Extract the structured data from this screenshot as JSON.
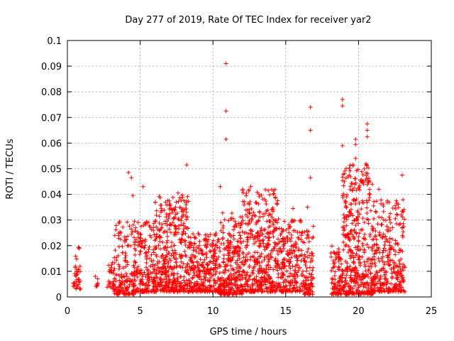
{
  "chart_data": {
    "type": "scatter",
    "title": "Day 277 of 2019, Rate Of TEC Index for receiver yar2",
    "xlabel": "GPS time / hours",
    "ylabel": "ROTI / TECUs",
    "xlim": [
      0,
      25
    ],
    "ylim": [
      0,
      0.1
    ],
    "x_ticks": [
      "0",
      "5",
      "10",
      "15",
      "20",
      "25"
    ],
    "y_ticks": [
      "0",
      "0.01",
      "0.02",
      "0.03",
      "0.04",
      "0.05",
      "0.06",
      "0.07",
      "0.08",
      "0.09",
      "0.1"
    ],
    "grid": true,
    "marker": "+",
    "color": "#ff0000",
    "series": [
      {
        "name": "ROTI",
        "clusters": [
          {
            "x_range": [
              0.4,
              0.9
            ],
            "y_range": [
              0.003,
              0.02
            ],
            "count": 40
          },
          {
            "x_range": [
              1.9,
              2.1
            ],
            "y_range": [
              0.004,
              0.011
            ],
            "count": 8
          },
          {
            "x_range": [
              2.7,
              3.2
            ],
            "y_range": [
              0.003,
              0.014
            ],
            "count": 25
          },
          {
            "x_range": [
              3.2,
              4.6
            ],
            "y_range": [
              0.001,
              0.03
            ],
            "count": 160
          },
          {
            "x_range": [
              4.6,
              6.0
            ],
            "y_range": [
              0.002,
              0.03
            ],
            "count": 180
          },
          {
            "x_range": [
              6.0,
              8.4
            ],
            "y_range": [
              0.002,
              0.04
            ],
            "count": 420
          },
          {
            "x_range": [
              8.4,
              10.5
            ],
            "y_range": [
              0.002,
              0.025
            ],
            "count": 300
          },
          {
            "x_range": [
              10.5,
              12.0
            ],
            "y_range": [
              0.001,
              0.033
            ],
            "count": 260
          },
          {
            "x_range": [
              12.0,
              14.5
            ],
            "y_range": [
              0.002,
              0.042
            ],
            "count": 420
          },
          {
            "x_range": [
              14.5,
              16.2
            ],
            "y_range": [
              0.002,
              0.03
            ],
            "count": 220
          },
          {
            "x_range": [
              16.2,
              16.9
            ],
            "y_range": [
              0.001,
              0.028
            ],
            "count": 90
          },
          {
            "x_range": [
              18.1,
              18.9
            ],
            "y_range": [
              0.001,
              0.02
            ],
            "count": 90
          },
          {
            "x_range": [
              18.9,
              21.0
            ],
            "y_range": [
              0.001,
              0.052
            ],
            "count": 420
          },
          {
            "x_range": [
              21.0,
              23.2
            ],
            "y_range": [
              0.002,
              0.038
            ],
            "count": 300
          }
        ],
        "outliers": [
          {
            "x": 10.9,
            "y": 0.091
          },
          {
            "x": 10.9,
            "y": 0.0725
          },
          {
            "x": 10.9,
            "y": 0.0615
          },
          {
            "x": 10.5,
            "y": 0.043
          },
          {
            "x": 16.7,
            "y": 0.074
          },
          {
            "x": 16.7,
            "y": 0.065
          },
          {
            "x": 16.7,
            "y": 0.0465
          },
          {
            "x": 18.9,
            "y": 0.077
          },
          {
            "x": 18.9,
            "y": 0.0745
          },
          {
            "x": 18.9,
            "y": 0.059
          },
          {
            "x": 19.8,
            "y": 0.0615
          },
          {
            "x": 19.8,
            "y": 0.0595
          },
          {
            "x": 19.8,
            "y": 0.054
          },
          {
            "x": 20.6,
            "y": 0.0675
          },
          {
            "x": 20.6,
            "y": 0.065
          },
          {
            "x": 20.6,
            "y": 0.0625
          },
          {
            "x": 23.0,
            "y": 0.0475
          },
          {
            "x": 4.2,
            "y": 0.0485
          },
          {
            "x": 4.4,
            "y": 0.0465
          },
          {
            "x": 8.2,
            "y": 0.0515
          },
          {
            "x": 5.2,
            "y": 0.043
          },
          {
            "x": 15.5,
            "y": 0.0345
          },
          {
            "x": 16.5,
            "y": 0.035
          },
          {
            "x": 22.6,
            "y": 0.0375
          },
          {
            "x": 21.4,
            "y": 0.042
          },
          {
            "x": 12.6,
            "y": 0.043
          },
          {
            "x": 13.8,
            "y": 0.0415
          },
          {
            "x": 7.6,
            "y": 0.0405
          },
          {
            "x": 4.5,
            "y": 0.0395
          },
          {
            "x": 23.0,
            "y": 0.0335
          }
        ]
      }
    ]
  }
}
